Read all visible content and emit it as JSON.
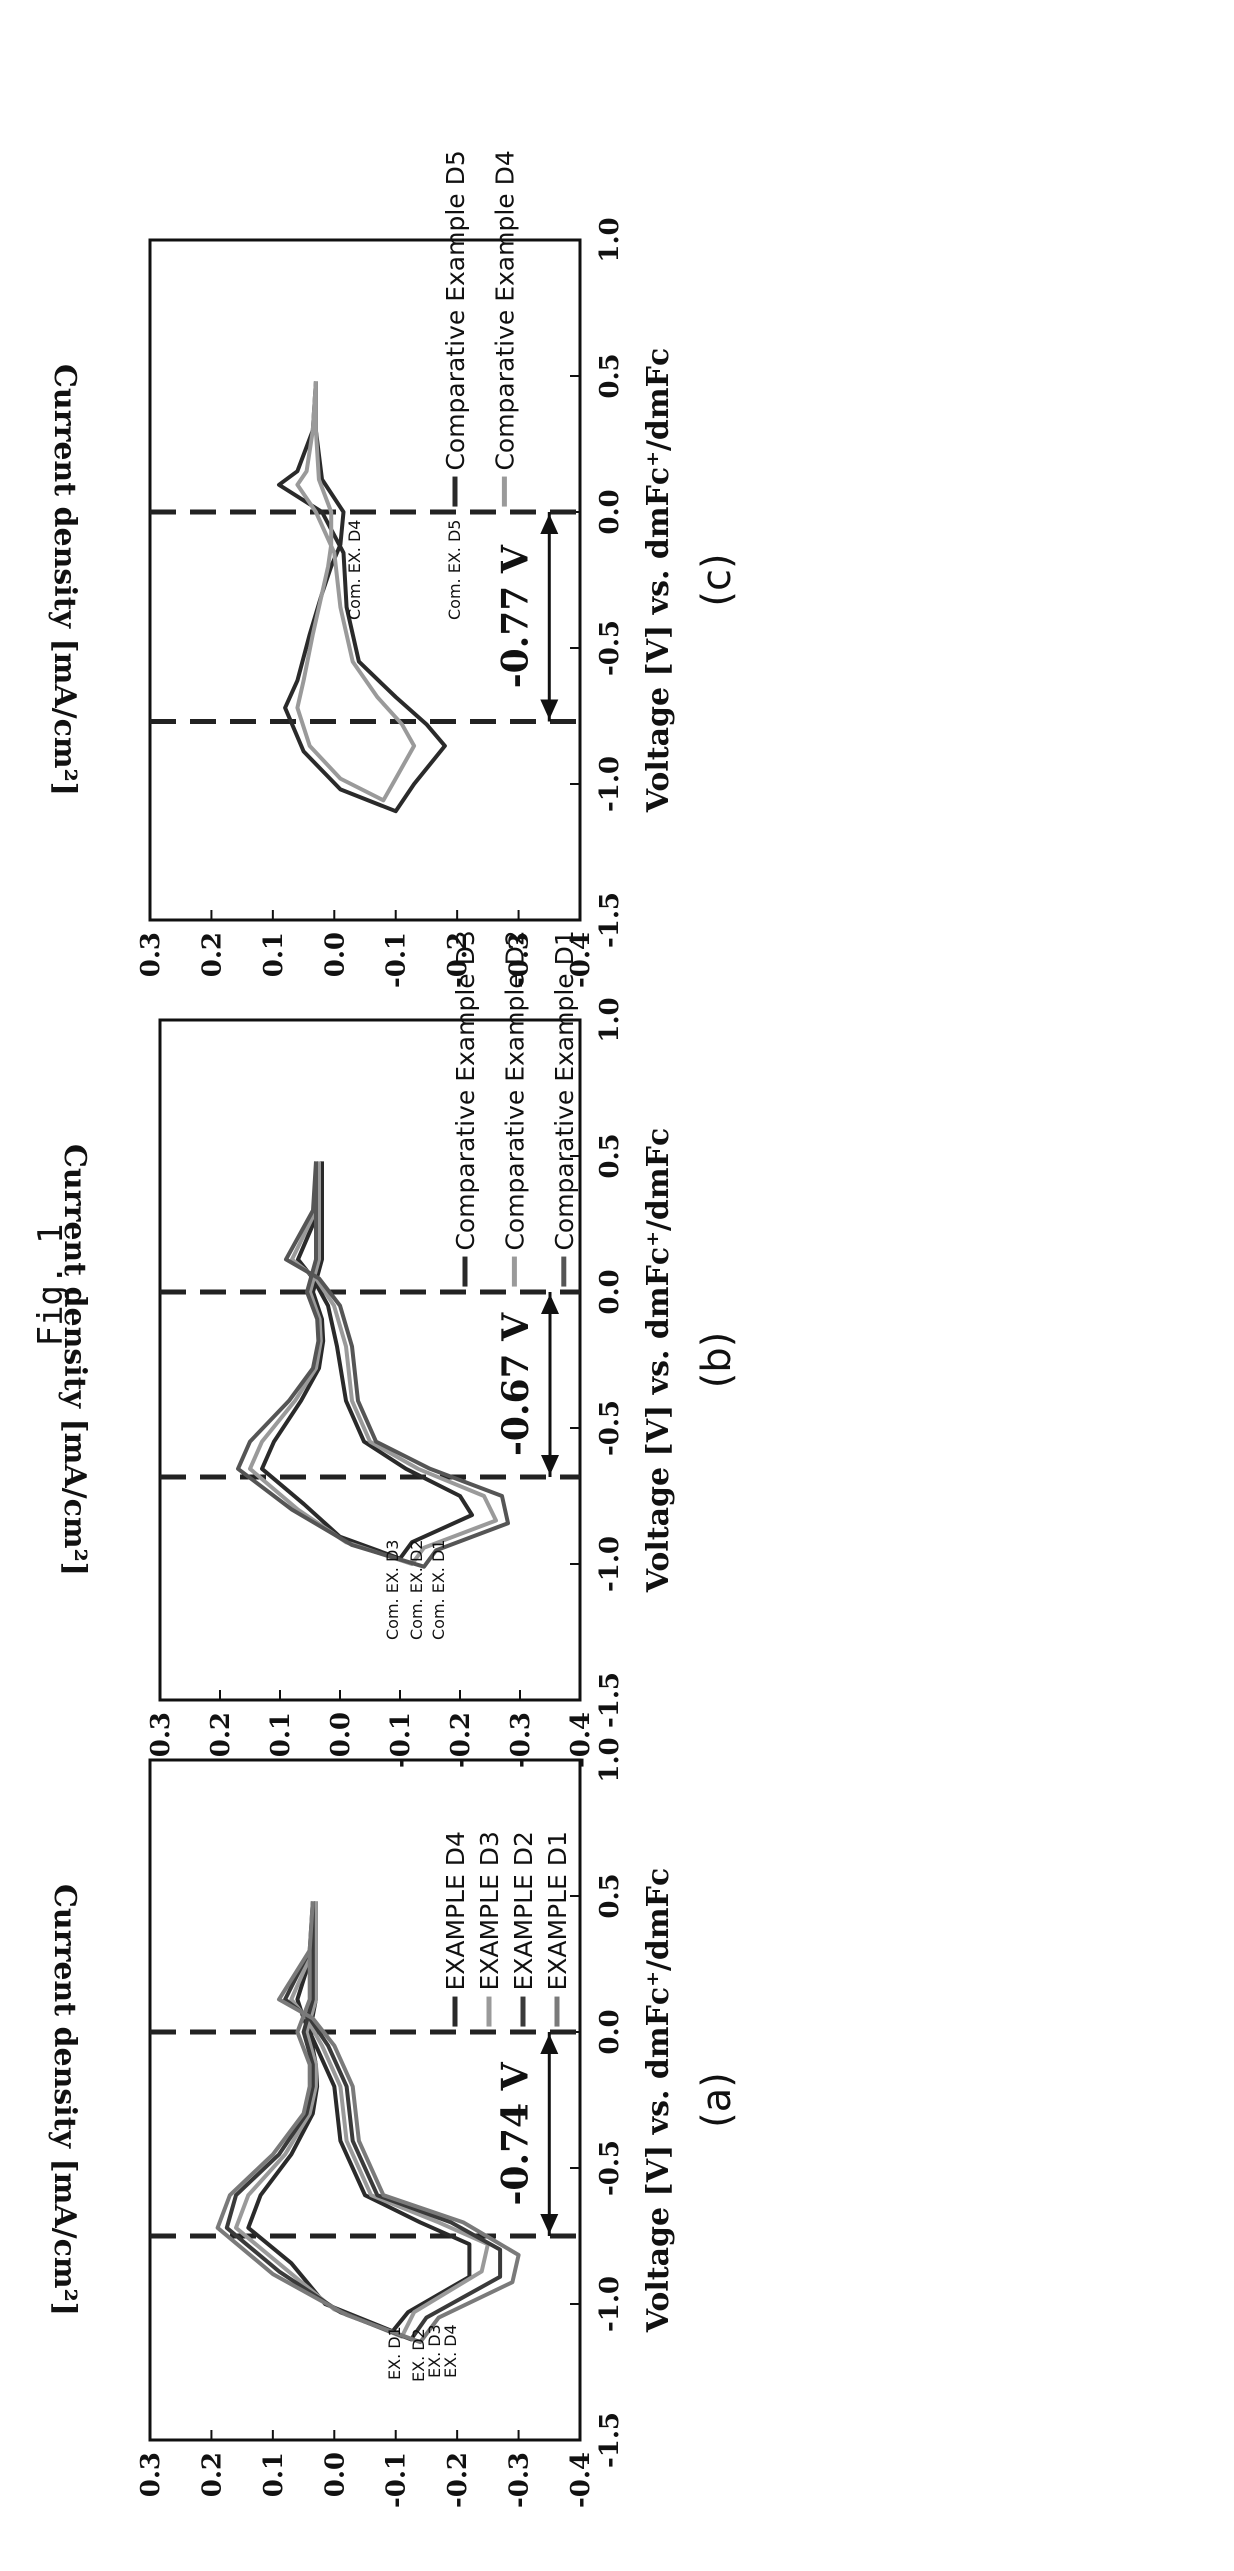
{
  "figure_title": "Fig. 1",
  "chart_data": [
    {
      "type": "line",
      "panel_label": "(a)",
      "xlabel": "Voltage [V] vs. dmFc⁺/dmFc",
      "ylabel": "Current density [mA/cm²]",
      "xlim": [
        -1.5,
        1.0
      ],
      "ylim": [
        -0.4,
        0.3
      ],
      "xticks": [
        "-1.5",
        "-1.0",
        "-0.5",
        "0.0",
        "0.5",
        "1.0"
      ],
      "yticks": [
        "-0.4",
        "-0.3",
        "-0.2",
        "-0.1",
        "0.0",
        "0.1",
        "0.2",
        "0.3"
      ],
      "vlines": [
        -0.75,
        0.0
      ],
      "voltage_gap": {
        "label": "-0.74 V",
        "from": -0.75,
        "to": 0.0,
        "y": -0.35
      },
      "curve_labels": [
        "EX. D1",
        "EX. D2",
        "EX. D3",
        "EX. D4"
      ],
      "series": [
        {
          "name": "EXAMPLE D4",
          "color": "#2a2a2a",
          "x": [
            0.48,
            0.3,
            0.12,
            0.05,
            -0.05,
            -0.2,
            -0.4,
            -0.6,
            -0.7,
            -0.78,
            -0.9,
            -1.03,
            -1.1,
            -1.0,
            -0.85,
            -0.72,
            -0.6,
            -0.45,
            -0.3,
            -0.2,
            -0.12,
            0.0,
            0.12,
            0.3,
            0.48
          ],
          "y": [
            0.03,
            0.035,
            0.06,
            0.05,
            0.03,
            0.0,
            -0.01,
            -0.05,
            -0.14,
            -0.22,
            -0.22,
            -0.12,
            -0.095,
            0.015,
            0.07,
            0.14,
            0.12,
            0.07,
            0.035,
            0.028,
            0.03,
            0.04,
            0.03,
            0.03,
            0.03
          ]
        },
        {
          "name": "EXAMPLE D3",
          "color": "#9a9a9a",
          "x": [
            0.48,
            0.3,
            0.12,
            0.05,
            -0.05,
            -0.2,
            -0.4,
            -0.6,
            -0.7,
            -0.78,
            -0.88,
            -1.03,
            -1.12,
            -1.02,
            -0.87,
            -0.72,
            -0.6,
            -0.45,
            -0.3,
            -0.2,
            -0.12,
            0.0,
            0.12,
            0.3,
            0.48
          ],
          "y": [
            0.03,
            0.035,
            0.07,
            0.045,
            0.02,
            -0.01,
            -0.02,
            -0.06,
            -0.17,
            -0.25,
            -0.24,
            -0.13,
            -0.11,
            0.0,
            0.08,
            0.16,
            0.14,
            0.08,
            0.04,
            0.03,
            0.03,
            0.045,
            0.03,
            0.03,
            0.03
          ]
        },
        {
          "name": "EXAMPLE D2",
          "color": "#3a3a3a",
          "x": [
            0.48,
            0.3,
            0.12,
            0.05,
            -0.05,
            -0.2,
            -0.4,
            -0.6,
            -0.7,
            -0.8,
            -0.9,
            -1.05,
            -1.13,
            -1.03,
            -0.88,
            -0.72,
            -0.6,
            -0.45,
            -0.3,
            -0.2,
            -0.12,
            0.0,
            0.12,
            0.3,
            0.48
          ],
          "y": [
            0.035,
            0.04,
            0.08,
            0.04,
            0.01,
            -0.02,
            -0.03,
            -0.07,
            -0.19,
            -0.27,
            -0.27,
            -0.15,
            -0.125,
            -0.01,
            0.09,
            0.175,
            0.16,
            0.09,
            0.045,
            0.035,
            0.035,
            0.05,
            0.035,
            0.035,
            0.035
          ]
        },
        {
          "name": "EXAMPLE D1",
          "color": "#7a7a7a",
          "x": [
            0.48,
            0.3,
            0.12,
            0.05,
            -0.05,
            -0.2,
            -0.4,
            -0.6,
            -0.7,
            -0.82,
            -0.92,
            -1.05,
            -1.14,
            -1.04,
            -0.89,
            -0.72,
            -0.6,
            -0.45,
            -0.3,
            -0.2,
            -0.12,
            0.0,
            0.12,
            0.3,
            0.48
          ],
          "y": [
            0.035,
            0.04,
            0.09,
            0.035,
            0.0,
            -0.03,
            -0.04,
            -0.08,
            -0.21,
            -0.3,
            -0.29,
            -0.17,
            -0.14,
            -0.02,
            0.1,
            0.19,
            0.17,
            0.1,
            0.05,
            0.04,
            0.04,
            0.06,
            0.04,
            0.04,
            0.035
          ]
        }
      ]
    },
    {
      "type": "line",
      "panel_label": "(b)",
      "xlabel": "Voltage [V] vs. dmFc⁺/dmFc",
      "ylabel": "Current density [mA/cm²]",
      "xlim": [
        -1.5,
        1.0
      ],
      "ylim": [
        -0.4,
        0.3
      ],
      "xticks": [
        "-1.5",
        "-1.0",
        "-0.5",
        "0.0",
        "0.5",
        "1.0"
      ],
      "yticks": [
        "-0.4",
        "-0.3",
        "-0.2",
        "-0.1",
        "0.0",
        "0.1",
        "0.2",
        "0.3"
      ],
      "vlines": [
        -0.68,
        0.0
      ],
      "voltage_gap": {
        "label": "-0.67 V",
        "from": -0.68,
        "to": 0.0,
        "y": -0.35
      },
      "curve_labels": [
        "Com. EX. D3",
        "Com. EX. D2",
        "Com. EX. D1"
      ],
      "series": [
        {
          "name": "Comparative Example D3",
          "color": "#2a2a2a",
          "x": [
            0.48,
            0.3,
            0.12,
            0.05,
            -0.05,
            -0.2,
            -0.4,
            -0.55,
            -0.65,
            -0.75,
            -0.82,
            -0.92,
            -0.98,
            -0.9,
            -0.78,
            -0.65,
            -0.55,
            -0.4,
            -0.28,
            -0.18,
            -0.1,
            0.0,
            0.12,
            0.3,
            0.48
          ],
          "y": [
            0.03,
            0.035,
            0.07,
            0.045,
            0.02,
            0.005,
            -0.01,
            -0.04,
            -0.11,
            -0.2,
            -0.22,
            -0.12,
            -0.1,
            0.0,
            0.06,
            0.13,
            0.11,
            0.065,
            0.035,
            0.028,
            0.03,
            0.045,
            0.03,
            0.03,
            0.03
          ]
        },
        {
          "name": "Comparative Example D2",
          "color": "#9a9a9a",
          "x": [
            0.48,
            0.3,
            0.12,
            0.05,
            -0.05,
            -0.2,
            -0.4,
            -0.55,
            -0.65,
            -0.75,
            -0.84,
            -0.94,
            -1.0,
            -0.92,
            -0.8,
            -0.65,
            -0.55,
            -0.4,
            -0.28,
            -0.18,
            -0.1,
            0.0,
            0.12,
            0.3,
            0.48
          ],
          "y": [
            0.035,
            0.04,
            0.08,
            0.04,
            0.01,
            -0.01,
            -0.02,
            -0.05,
            -0.13,
            -0.24,
            -0.26,
            -0.14,
            -0.12,
            -0.01,
            0.07,
            0.15,
            0.13,
            0.075,
            0.04,
            0.032,
            0.034,
            0.05,
            0.035,
            0.035,
            0.035
          ]
        },
        {
          "name": "Comparative Example D1",
          "color": "#555555",
          "x": [
            0.48,
            0.3,
            0.12,
            0.05,
            -0.05,
            -0.2,
            -0.4,
            -0.55,
            -0.65,
            -0.75,
            -0.85,
            -0.95,
            -1.01,
            -0.93,
            -0.8,
            -0.65,
            -0.55,
            -0.4,
            -0.28,
            -0.18,
            -0.1,
            0.0,
            0.12,
            0.3,
            0.48
          ],
          "y": [
            0.04,
            0.045,
            0.09,
            0.035,
            0.0,
            -0.02,
            -0.03,
            -0.06,
            -0.15,
            -0.27,
            -0.28,
            -0.16,
            -0.14,
            -0.02,
            0.08,
            0.17,
            0.15,
            0.085,
            0.045,
            0.036,
            0.038,
            0.055,
            0.04,
            0.04,
            0.04
          ]
        }
      ]
    },
    {
      "type": "line",
      "panel_label": "(c)",
      "xlabel": "Voltage [V] vs. dmFc⁺/dmFc",
      "ylabel": "Current density [mA/cm²]",
      "xlim": [
        -1.5,
        1.0
      ],
      "ylim": [
        -0.4,
        0.3
      ],
      "xticks": [
        "-1.5",
        "-1.0",
        "-0.5",
        "0.0",
        "0.5",
        "1.0"
      ],
      "yticks": [
        "-0.4",
        "-0.3",
        "-0.2",
        "-0.1",
        "0.0",
        "0.1",
        "0.2",
        "0.3"
      ],
      "vlines": [
        -0.77,
        0.0
      ],
      "voltage_gap": {
        "label": "-0.77 V",
        "from": -0.77,
        "to": 0.0,
        "y": -0.35
      },
      "curve_labels": [
        "Com. EX. D4",
        "Com. EX. D5"
      ],
      "series": [
        {
          "name": "Comparative Example D5",
          "color": "#2a2a2a",
          "x": [
            0.48,
            0.3,
            0.15,
            0.1,
            0.0,
            -0.15,
            -0.35,
            -0.55,
            -0.68,
            -0.78,
            -0.86,
            -1.0,
            -1.1,
            -1.02,
            -0.88,
            -0.72,
            -0.62,
            -0.45,
            -0.3,
            -0.2,
            -0.12,
            0.0,
            0.12,
            0.3,
            0.48
          ],
          "y": [
            0.03,
            0.035,
            0.06,
            0.09,
            0.02,
            -0.015,
            -0.02,
            -0.04,
            -0.1,
            -0.15,
            -0.18,
            -0.13,
            -0.1,
            -0.01,
            0.05,
            0.08,
            0.06,
            0.04,
            0.02,
            0.005,
            -0.01,
            -0.015,
            0.02,
            0.03,
            0.03
          ]
        },
        {
          "name": "Comparative Example D4",
          "color": "#9a9a9a",
          "x": [
            0.48,
            0.3,
            0.15,
            0.1,
            0.0,
            -0.15,
            -0.35,
            -0.55,
            -0.68,
            -0.78,
            -0.86,
            -0.98,
            -1.06,
            -0.98,
            -0.86,
            -0.72,
            -0.62,
            -0.45,
            -0.3,
            -0.2,
            -0.12,
            0.0,
            0.12,
            0.3,
            0.48
          ],
          "y": [
            0.03,
            0.035,
            0.045,
            0.06,
            0.03,
            0.0,
            -0.01,
            -0.03,
            -0.07,
            -0.11,
            -0.13,
            -0.1,
            -0.08,
            -0.01,
            0.04,
            0.06,
            0.05,
            0.035,
            0.02,
            0.01,
            0.005,
            0.005,
            0.025,
            0.03,
            0.03
          ]
        }
      ]
    }
  ]
}
